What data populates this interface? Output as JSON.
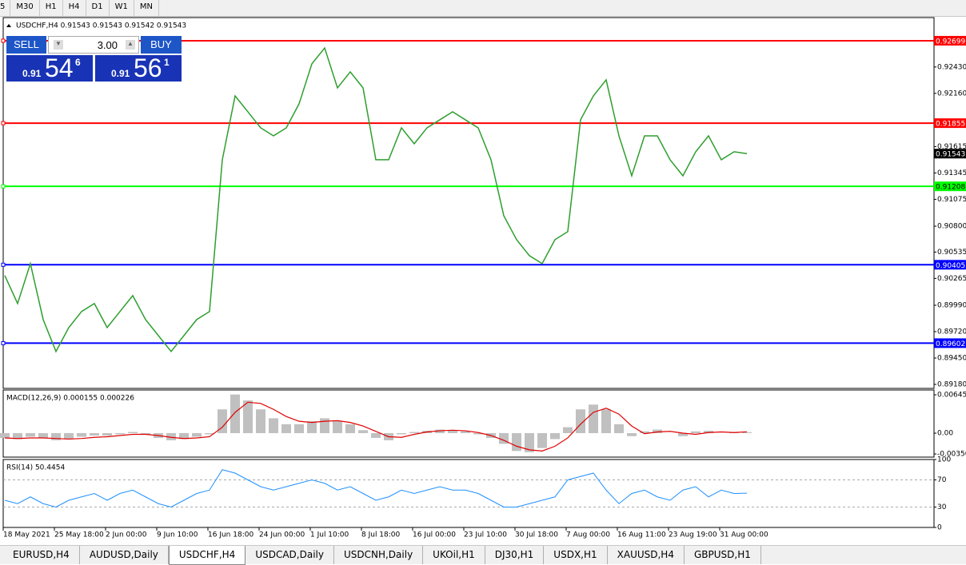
{
  "toolbar": {
    "timeframes": [
      "5",
      "M30",
      "H1",
      "H4",
      "D1",
      "W1",
      "MN"
    ]
  },
  "trade_panel": {
    "sell": "SELL",
    "buy": "BUY",
    "volume": "3.00",
    "bid": {
      "prefix": "0.91",
      "big": "54",
      "small": "6"
    },
    "ask": {
      "prefix": "0.91",
      "big": "56",
      "small": "1"
    }
  },
  "chart_data": [
    {
      "type": "line",
      "title": "USDCHF,H4  0.91543 0.91543 0.91542 0.91543",
      "color": "#2e9e2e",
      "categories": [
        "18 May 2021",
        null,
        null,
        null,
        "25 May 18:00",
        null,
        null,
        null,
        "2 Jun 00:00",
        null,
        null,
        null,
        "9 Jun 10:00",
        null,
        null,
        null,
        "16 Jun 18:00",
        null,
        null,
        null,
        "24 Jun 00:00",
        null,
        null,
        null,
        "1 Jul 10:00",
        null,
        null,
        null,
        "8 Jul 18:00",
        null,
        null,
        null,
        "16 Jul 00:00",
        null,
        null,
        null,
        "23 Jul 10:00",
        null,
        null,
        null,
        "30 Jul 18:00",
        null,
        null,
        null,
        "7 Aug 00:00",
        null,
        null,
        null,
        "16 Aug 11:00",
        null,
        null,
        null,
        "23 Aug 19:00",
        null,
        null,
        null,
        "31 Aug 00:00",
        null,
        null
      ],
      "values": [
        0.90294,
        0.90008,
        0.90417,
        0.89844,
        0.89517,
        0.89762,
        0.89926,
        0.90008,
        0.89762,
        0.89926,
        0.90089,
        0.89844,
        0.8968,
        0.89517,
        0.8968,
        0.89844,
        0.89926,
        0.9148,
        0.92134,
        0.91971,
        0.91807,
        0.91725,
        0.91807,
        0.92053,
        0.92462,
        0.92625,
        0.92216,
        0.9238,
        0.92216,
        0.9148,
        0.9148,
        0.91807,
        0.91644,
        0.91807,
        0.91889,
        0.91971,
        0.91889,
        0.91807,
        0.9148,
        0.90907,
        0.90662,
        0.90498,
        0.90417,
        0.90662,
        0.90744,
        0.91889,
        0.92134,
        0.92298,
        0.91725,
        0.91316,
        0.91725,
        0.91725,
        0.9148,
        0.91316,
        0.91562,
        0.91725,
        0.9148,
        0.91562,
        0.91543
      ],
      "ylim": [
        0.89139,
        0.92936
      ],
      "yticks": [
        {
          "value": 0.9243,
          "label": "0.92430"
        },
        {
          "value": 0.9216,
          "label": "0.92160"
        },
        0.91615,
        0.91345,
        0.91075,
        {
          "value": 0.908,
          "label": "0.90800"
        },
        0.90535,
        0.90265,
        {
          "value": 0.8999,
          "label": "0.89990"
        },
        {
          "value": 0.8972,
          "label": "0.89720"
        },
        {
          "value": 0.8945,
          "label": "0.89450"
        },
        {
          "value": 0.8918,
          "label": "0.89180"
        }
      ],
      "levels": [
        {
          "value": 0.92699,
          "color": "#ff0000"
        },
        {
          "value": 0.91855,
          "color": "#ff0000"
        },
        {
          "value": 0.91208,
          "color": "#00ff00"
        },
        {
          "value": 0.90405,
          "color": "#0000ff"
        },
        {
          "value": 0.89602,
          "color": "#0000ff"
        }
      ],
      "current_price": 0.91543
    },
    {
      "type": "bar",
      "title": "MACD(12,26,9) 0.000155 0.000226",
      "series": [
        {
          "color": "#c0c0c0",
          "values": [
            -0.0008,
            -0.001,
            -0.0006,
            -0.0008,
            -0.0012,
            -0.001,
            -0.0006,
            -0.0004,
            -0.0004,
            -0.0002,
            0.0002,
            -0.0002,
            -0.0008,
            -0.0012,
            -0.001,
            -0.0006,
            -0.0002,
            0.004,
            0.0065,
            0.0055,
            0.004,
            0.0025,
            0.0015,
            0.0015,
            0.002,
            0.0025,
            0.002,
            0.0015,
            0.0005,
            -0.0008,
            -0.0012,
            -0.0002,
            0.0002,
            0.0004,
            0.0006,
            0.0005,
            0.0003,
            -0.0002,
            -0.0008,
            -0.0018,
            -0.003,
            -0.0032,
            -0.0025,
            -0.001,
            0.001,
            0.004,
            0.0048,
            0.004,
            0.0015,
            -0.0005,
            0.0003,
            0.0006,
            0,
            -0.0005,
            0.0003,
            0.0004,
            0,
            0.0002,
            0.000155
          ]
        },
        {
          "type": "line",
          "color": "#e00000",
          "values": [
            -0.0008,
            -0.0009,
            -0.0008,
            -0.0008,
            -0.0009,
            -0.001,
            -0.0009,
            -0.0007,
            -0.0006,
            -0.0004,
            -0.0002,
            -0.0002,
            -0.0004,
            -0.0007,
            -0.0009,
            -0.0008,
            -0.0006,
            0.001,
            0.0035,
            0.0052,
            0.005,
            0.004,
            0.0028,
            0.002,
            0.0018,
            0.002,
            0.0021,
            0.0018,
            0.0012,
            0.0003,
            -0.0006,
            -0.0007,
            -0.0002,
            0.0002,
            0.0004,
            0.0005,
            0.0004,
            0.0001,
            -0.0004,
            -0.0012,
            -0.0022,
            -0.0028,
            -0.003,
            -0.0022,
            -0.0008,
            0.0015,
            0.0035,
            0.0042,
            0.0032,
            0.0012,
            -0.0001,
            0.0002,
            0.0003,
            0,
            -0.0002,
            0.0001,
            0.0002,
            0.0001,
            0.000226
          ]
        }
      ],
      "ylim": [
        -0.00403,
        0.00726
      ],
      "yticks": [
        0.006451,
        {
          "value": 0,
          "label": "0.00"
        },
        {
          "value": -0.0035,
          "label": "-0.00350"
        }
      ]
    },
    {
      "type": "line",
      "title": "RSI(14) 50.4454",
      "color": "#1e90ff",
      "values": [
        40,
        35,
        45,
        35,
        30,
        40,
        45,
        50,
        40,
        50,
        55,
        45,
        35,
        30,
        40,
        50,
        55,
        85,
        80,
        70,
        60,
        55,
        60,
        65,
        70,
        65,
        55,
        60,
        50,
        40,
        45,
        55,
        50,
        55,
        60,
        55,
        55,
        50,
        40,
        30,
        30,
        35,
        40,
        45,
        70,
        75,
        80,
        55,
        35,
        50,
        55,
        45,
        40,
        55,
        60,
        45,
        55,
        50,
        50.4454
      ],
      "ylim": [
        0,
        100
      ],
      "yticks": [
        100,
        70,
        30,
        0
      ],
      "levels": [
        70,
        30
      ]
    }
  ],
  "tabs": [
    "EURUSD,H4",
    "AUDUSD,Daily",
    "USDCHF,H4",
    "USDCAD,Daily",
    "USDCNH,Daily",
    "UKOil,H1",
    "DJ30,H1",
    "USDX,H1",
    "XAUUSD,H4",
    "GBPUSD,H1"
  ],
  "active_tab": 2
}
